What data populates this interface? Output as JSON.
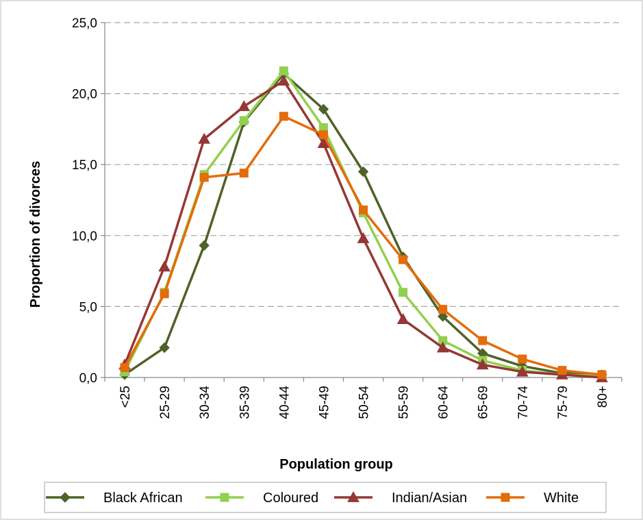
{
  "chart_data": {
    "type": "line",
    "title": "",
    "xlabel": "Population group",
    "ylabel": "Proportion of divorces",
    "categories": [
      "<25",
      "25-29",
      "30-34",
      "35-39",
      "40-44",
      "45-49",
      "50-54",
      "55-59",
      "60-64",
      "65-69",
      "70-74",
      "75-79",
      "80+"
    ],
    "ylim": [
      0,
      25
    ],
    "y_ticks": [
      "0,0",
      "5,0",
      "10,0",
      "15,0",
      "20,0",
      "25,0"
    ],
    "y_tick_values": [
      0,
      5,
      10,
      15,
      20,
      25
    ],
    "grid": "horizontal dashed",
    "legend_position": "bottom",
    "series": [
      {
        "name": "Black African",
        "color": "#4f6228",
        "marker": "diamond",
        "values": [
          0.2,
          2.1,
          9.3,
          18.0,
          21.4,
          18.9,
          14.5,
          8.5,
          4.3,
          1.7,
          0.8,
          0.3,
          0.2
        ]
      },
      {
        "name": "Coloured",
        "color": "#92d050",
        "marker": "square",
        "values": [
          0.4,
          6.0,
          14.3,
          18.1,
          21.6,
          17.6,
          11.6,
          6.0,
          2.6,
          1.2,
          0.5,
          0.2,
          0.1
        ]
      },
      {
        "name": "Indian/Asian",
        "color": "#953735",
        "marker": "triangle",
        "values": [
          0.9,
          7.8,
          16.8,
          19.1,
          20.9,
          16.5,
          9.8,
          4.1,
          2.1,
          0.9,
          0.4,
          0.2,
          0.0
        ]
      },
      {
        "name": "White",
        "color": "#e46c0a",
        "marker": "square",
        "values": [
          0.7,
          5.9,
          14.1,
          14.4,
          18.4,
          17.1,
          11.8,
          8.3,
          4.8,
          2.6,
          1.3,
          0.5,
          0.2
        ]
      }
    ]
  }
}
